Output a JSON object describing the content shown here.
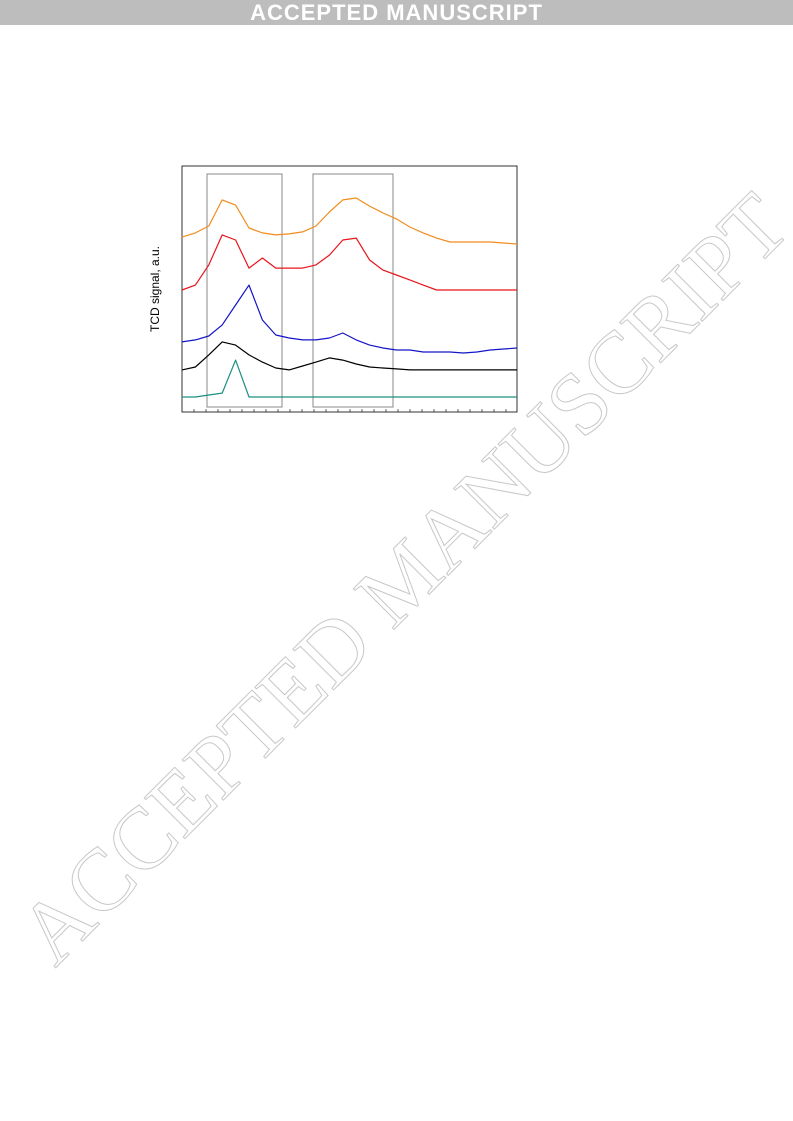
{
  "header": {
    "banner": "ACCEPTED MANUSCRIPT"
  },
  "watermark": "ACCEPTED MANUSCRIPT",
  "chart_data": {
    "type": "line",
    "y_label": "TCD signal, a.u.",
    "x": [
      0,
      4,
      8,
      12,
      16,
      20,
      24,
      28,
      32,
      36,
      40,
      44,
      48,
      52,
      56,
      60,
      64,
      68,
      72,
      76,
      80,
      84,
      88,
      92,
      96,
      100
    ],
    "xlim": [
      0,
      100
    ],
    "ylim": [
      0,
      100
    ],
    "series": [
      {
        "color": "#f28c1c",
        "values": [
          71.1,
          72.8,
          75.6,
          86.2,
          84.1,
          74.8,
          72.8,
          72,
          72.4,
          73.2,
          75.6,
          81.3,
          86.2,
          87,
          83.7,
          80.9,
          78.5,
          75.2,
          72.8,
          70.7,
          69.1,
          69.1,
          69.1,
          69.1,
          68.7,
          68.3
        ]
      },
      {
        "color": "#e8141c",
        "values": [
          49.6,
          51.6,
          59.8,
          72,
          69.9,
          58.5,
          62.6,
          58.5,
          58.5,
          58.5,
          59.8,
          63.8,
          69.9,
          70.7,
          61.8,
          57.7,
          55.7,
          53.7,
          51.6,
          49.6,
          49.6,
          49.6,
          49.6,
          49.6,
          49.6,
          49.6
        ]
      },
      {
        "color": "#1414c8",
        "values": [
          28.5,
          29.3,
          30.9,
          35.4,
          43.5,
          51.6,
          37.4,
          31.3,
          30.1,
          29.3,
          29.3,
          30.1,
          32.1,
          29.3,
          27.2,
          26,
          25.2,
          25.2,
          24.4,
          24.4,
          24.4,
          24,
          24.4,
          25.2,
          25.6,
          26
        ]
      },
      {
        "color": "#000000",
        "values": [
          17.1,
          18.3,
          23.2,
          28.5,
          27.2,
          23.2,
          20.3,
          17.9,
          17.1,
          18.7,
          20.3,
          22,
          21.1,
          19.5,
          18.3,
          17.9,
          17.5,
          17.1,
          17.1,
          17.1,
          17.1,
          17.1,
          17.1,
          17.1,
          17.1,
          17.1
        ]
      },
      {
        "color": "#1a9080",
        "values": [
          6.1,
          6.1,
          6.9,
          7.7,
          21.1,
          6.1,
          6.1,
          6.1,
          6.1,
          6.1,
          6.1,
          6.1,
          6.1,
          6.1,
          6.1,
          6.1,
          6.1,
          6.1,
          6.1,
          6.1,
          6.1,
          6.1,
          6.1,
          6.1,
          6.1,
          6.1
        ]
      }
    ]
  }
}
